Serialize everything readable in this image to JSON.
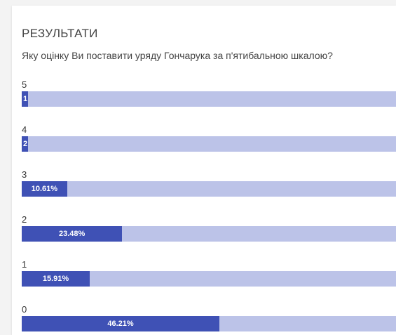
{
  "results": {
    "heading": "РЕЗУЛЬТАТИ",
    "question": "Яку оцінку Ви поставити уряду Гончарука за п'ятибальною шкалою?",
    "accent_color": "#3f51b5",
    "track_color": "#bcc3e8",
    "rows": [
      {
        "label": "5",
        "value_text": "1",
        "percent": 0.76
      },
      {
        "label": "4",
        "value_text": "2",
        "percent": 1.52
      },
      {
        "label": "3",
        "value_text": "10.61%",
        "percent": 10.61
      },
      {
        "label": "2",
        "value_text": "23.48%",
        "percent": 23.48
      },
      {
        "label": "1",
        "value_text": "15.91%",
        "percent": 15.91
      },
      {
        "label": "0",
        "value_text": "46.21%",
        "percent": 46.21
      }
    ]
  }
}
